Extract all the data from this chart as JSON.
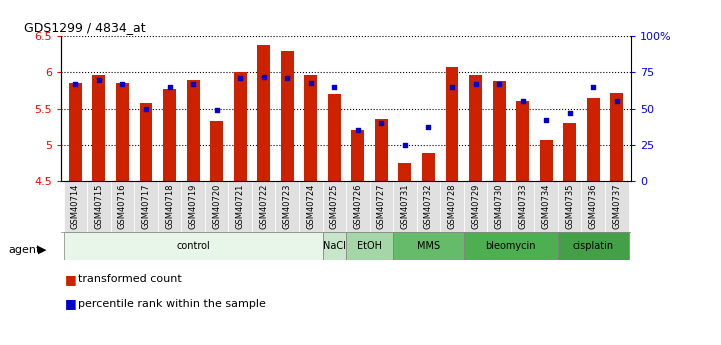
{
  "title": "GDS1299 / 4834_at",
  "samples": [
    "GSM40714",
    "GSM40715",
    "GSM40716",
    "GSM40717",
    "GSM40718",
    "GSM40719",
    "GSM40720",
    "GSM40721",
    "GSM40722",
    "GSM40723",
    "GSM40724",
    "GSM40725",
    "GSM40726",
    "GSM40727",
    "GSM40731",
    "GSM40732",
    "GSM40728",
    "GSM40729",
    "GSM40730",
    "GSM40733",
    "GSM40734",
    "GSM40735",
    "GSM40736",
    "GSM40737"
  ],
  "transformed_count": [
    5.85,
    5.97,
    5.85,
    5.57,
    5.77,
    5.9,
    5.33,
    6.0,
    6.38,
    6.3,
    5.97,
    5.7,
    5.2,
    5.35,
    4.75,
    4.88,
    6.08,
    5.97,
    5.88,
    5.6,
    5.07,
    5.3,
    5.65,
    5.72
  ],
  "percentile": [
    67,
    70,
    67,
    50,
    65,
    67,
    49,
    71,
    72,
    71,
    68,
    65,
    35,
    40,
    25,
    37,
    65,
    67,
    67,
    55,
    42,
    47,
    65,
    55
  ],
  "agent_groups": [
    {
      "label": "control",
      "start": 0,
      "end": 10,
      "color": "#e8f5e9"
    },
    {
      "label": "NaCl",
      "start": 11,
      "end": 11,
      "color": "#c8e6c9"
    },
    {
      "label": "EtOH",
      "start": 12,
      "end": 13,
      "color": "#a5d6a7"
    },
    {
      "label": "MMS",
      "start": 14,
      "end": 16,
      "color": "#66bb6a"
    },
    {
      "label": "bleomycin",
      "start": 17,
      "end": 20,
      "color": "#4caf50"
    },
    {
      "label": "cisplatin",
      "start": 21,
      "end": 23,
      "color": "#43a047"
    }
  ],
  "ylim": [
    4.5,
    6.5
  ],
  "yticks_left": [
    4.5,
    5.0,
    5.5,
    6.0,
    6.5
  ],
  "ytick_labels_left": [
    "4.5",
    "5",
    "5.5",
    "6",
    "6.5"
  ],
  "right_yticks_pct": [
    0,
    25,
    50,
    75,
    100
  ],
  "right_ytick_labels": [
    "0",
    "25",
    "50",
    "75",
    "100%"
  ],
  "bar_color": "#cc2200",
  "dot_color": "#0000cc",
  "background_color": "#ffffff",
  "plot_bg_color": "#ffffff",
  "sample_label_bg": "#e0e0e0",
  "bar_width": 0.55,
  "grid_color": "#000000"
}
